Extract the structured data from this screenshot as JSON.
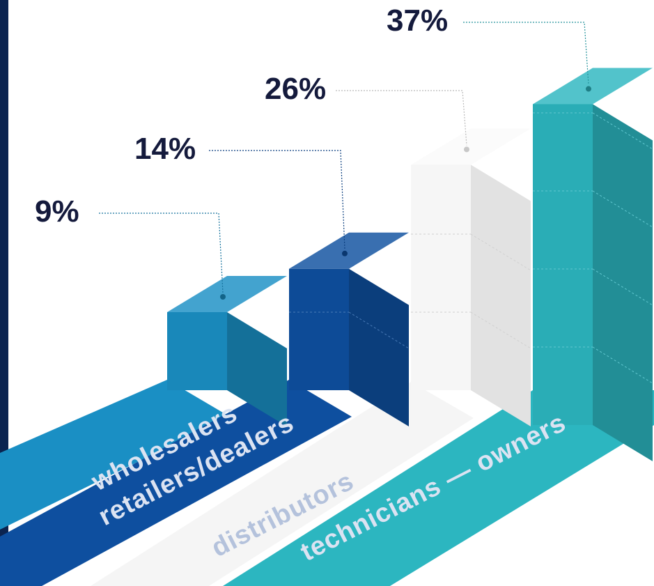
{
  "chart_data": {
    "type": "bar",
    "title": "",
    "xlabel": "",
    "ylabel": "",
    "categories": [
      "wholesalers",
      "retailers/dealers",
      "distributors",
      "technicians — owners"
    ],
    "values": [
      9,
      14,
      26,
      37
    ],
    "value_labels": [
      "9%",
      "14%",
      "26%",
      "37%"
    ],
    "unit": "%",
    "style": "3d-isometric-cubes",
    "legend": "none",
    "grid": false
  },
  "colors": {
    "wholesalers": "#1a8fc4",
    "retailers_dealers": "#0e4f9f",
    "distributors": "#ececec",
    "technicians_owners": "#2cb6c0",
    "label_text": "#141a3c",
    "category_text": "#dbe3f2",
    "distributors_text": "#b4c2dc",
    "left_edge": "#0b2450"
  }
}
